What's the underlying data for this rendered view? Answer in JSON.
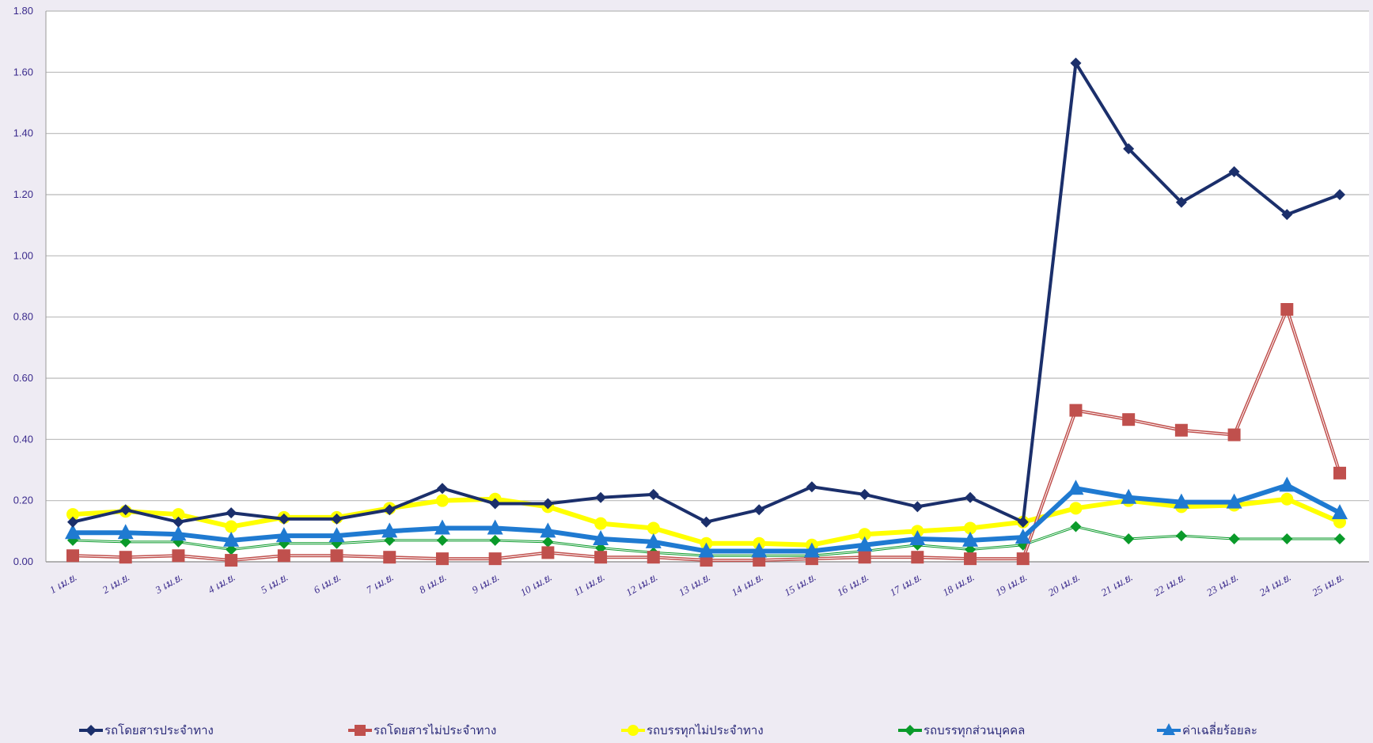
{
  "chart_data": {
    "type": "line",
    "title": "",
    "xlabel": "",
    "ylabel": "",
    "ylim": [
      0,
      1.8
    ],
    "yticks": [
      "0.00",
      "0.20",
      "0.40",
      "0.60",
      "0.80",
      "1.00",
      "1.20",
      "1.40",
      "1.60",
      "1.80"
    ],
    "grid": true,
    "legend_position": "bottom",
    "categories": [
      "1 เม.ย.",
      "2 เม.ย.",
      "3 เม.ย.",
      "4 เม.ย.",
      "5 เม.ย.",
      "6 เม.ย.",
      "7 เม.ย.",
      "8 เม.ย.",
      "9 เม.ย.",
      "10 เม.ย.",
      "11 เม.ย.",
      "12 เม.ย.",
      "13 เม.ย.",
      "14 เม.ย.",
      "15 เม.ย.",
      "16 เม.ย.",
      "17 เม.ย.",
      "18 เม.ย.",
      "19 เม.ย.",
      "20 เม.ย.",
      "21 เม.ย.",
      "22 เม.ย.",
      "23 เม.ย.",
      "24 เม.ย.",
      "25 เม.ย."
    ],
    "series": [
      {
        "name": "รถโดยสารประจำทาง",
        "color": "#1b2f6b",
        "marker": "diamond",
        "values": [
          0.13,
          0.17,
          0.13,
          0.16,
          0.14,
          0.14,
          0.17,
          0.24,
          0.19,
          0.19,
          0.21,
          0.22,
          0.13,
          0.17,
          0.245,
          0.22,
          0.18,
          0.21,
          0.13,
          1.63,
          1.35,
          1.175,
          1.275,
          1.135,
          1.2
        ]
      },
      {
        "name": "รถโดยสารไม่ประจำทาง",
        "color": "#c0504d",
        "marker": "square",
        "values": [
          0.02,
          0.015,
          0.02,
          0.005,
          0.02,
          0.02,
          0.015,
          0.01,
          0.01,
          0.03,
          0.015,
          0.015,
          0.005,
          0.005,
          0.01,
          0.015,
          0.015,
          0.01,
          0.01,
          0.495,
          0.465,
          0.43,
          0.415,
          0.825,
          0.29
        ]
      },
      {
        "name": "รถบรรทุกไม่ประจำทาง",
        "color": "#ffff00",
        "marker": "circle",
        "values": [
          0.155,
          0.165,
          0.155,
          0.115,
          0.145,
          0.145,
          0.175,
          0.2,
          0.205,
          0.18,
          0.125,
          0.11,
          0.06,
          0.06,
          0.055,
          0.09,
          0.1,
          0.11,
          0.13,
          0.175,
          0.2,
          0.18,
          0.185,
          0.205,
          0.13
        ]
      },
      {
        "name": "รถบรรทุกส่วนบุคคล",
        "color": "#0a9a2a",
        "marker": "diamond",
        "values": [
          0.07,
          0.065,
          0.065,
          0.04,
          0.06,
          0.06,
          0.07,
          0.07,
          0.07,
          0.065,
          0.045,
          0.03,
          0.02,
          0.02,
          0.02,
          0.035,
          0.055,
          0.04,
          0.055,
          0.115,
          0.075,
          0.085,
          0.075,
          0.075,
          0.075
        ]
      },
      {
        "name": "ค่าเฉลี่ยร้อยละ",
        "color": "#1f7ad1",
        "marker": "triangle",
        "values": [
          0.095,
          0.095,
          0.09,
          0.07,
          0.085,
          0.085,
          0.1,
          0.11,
          0.11,
          0.1,
          0.075,
          0.065,
          0.035,
          0.035,
          0.035,
          0.055,
          0.075,
          0.07,
          0.08,
          0.24,
          0.21,
          0.195,
          0.195,
          0.25,
          0.16
        ]
      }
    ]
  }
}
